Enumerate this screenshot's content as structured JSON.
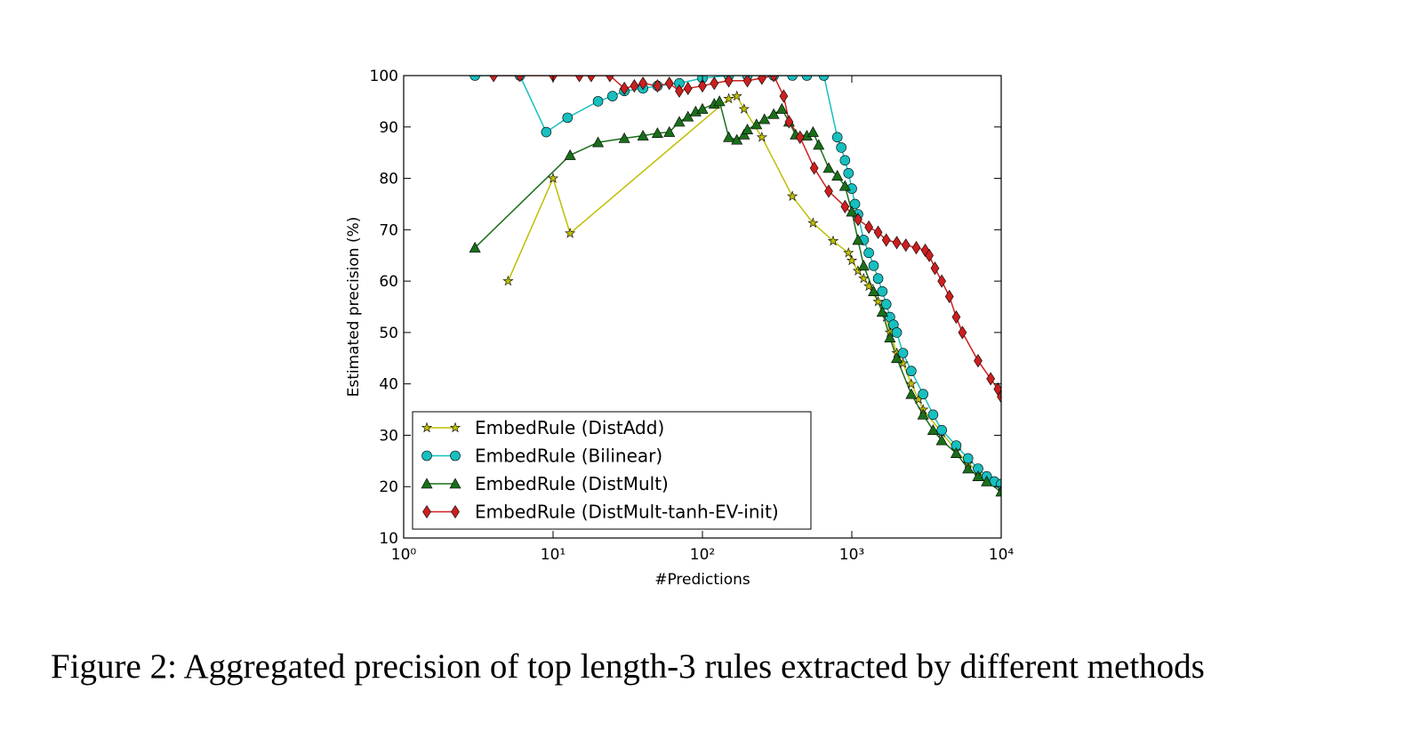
{
  "chart_data": {
    "type": "line",
    "xlabel": "#Predictions",
    "ylabel": "Estimated precision (%)",
    "caption": "Figure 2: Aggregated precision of top length-3 rules extracted by different methods",
    "xscale": "log",
    "xlim": [
      1,
      10000
    ],
    "xticks": [
      {
        "value": 1,
        "label": "10⁰"
      },
      {
        "value": 10,
        "label": "10¹"
      },
      {
        "value": 100,
        "label": "10²"
      },
      {
        "value": 1000,
        "label": "10³"
      },
      {
        "value": 10000,
        "label": "10⁴"
      }
    ],
    "ylim": [
      10,
      100
    ],
    "yticks": [
      10,
      20,
      30,
      40,
      50,
      60,
      70,
      80,
      90,
      100
    ],
    "legend": "lower left",
    "series": [
      {
        "name": "EmbedRule (DistAdd)",
        "color": "#bfbf00",
        "marker": "star",
        "x": [
          5,
          10,
          13,
          150,
          170,
          190,
          250,
          400,
          550,
          750,
          950,
          1000,
          1100,
          1200,
          1300,
          1500,
          1700,
          1800,
          2000,
          2200,
          2500,
          2800,
          3000,
          4000,
          5000,
          6000,
          7000,
          8000,
          10000
        ],
        "values": [
          60,
          80,
          69.3,
          95.5,
          96,
          93.5,
          88,
          76.5,
          71.3,
          67.8,
          65.5,
          64,
          62,
          60.5,
          59,
          56,
          53,
          50,
          46,
          44,
          40,
          37,
          35,
          30.5,
          27,
          24.5,
          23,
          21.5,
          20
        ]
      },
      {
        "name": "EmbedRule (Bilinear)",
        "color": "#17bfbf",
        "marker": "circle",
        "x": [
          3,
          6,
          9,
          12.5,
          20,
          25,
          30,
          40,
          50,
          70,
          100,
          150,
          200,
          300,
          400,
          500,
          650,
          800,
          850,
          900,
          950,
          1000,
          1050,
          1100,
          1200,
          1300,
          1400,
          1500,
          1600,
          1700,
          1800,
          1900,
          2000,
          2200,
          2500,
          3000,
          3500,
          4000,
          5000,
          6000,
          7000,
          8000,
          9000,
          10000
        ],
        "values": [
          100,
          100,
          89,
          91.8,
          95,
          96,
          97,
          97.5,
          98,
          98.5,
          99.5,
          100,
          100,
          100,
          100,
          100,
          100,
          88,
          86,
          83.5,
          81,
          78,
          75,
          73,
          68,
          65.5,
          63,
          60.5,
          58,
          55.5,
          53,
          51.5,
          50,
          46,
          42.5,
          38,
          34,
          31,
          28,
          25.5,
          23.5,
          22,
          21,
          20.5
        ]
      },
      {
        "name": "EmbedRule (DistMult)",
        "color": "#1a6e1a",
        "marker": "triangle",
        "x": [
          3,
          13,
          20,
          30,
          40,
          50,
          60,
          70,
          80,
          90,
          100,
          120,
          130,
          150,
          170,
          190,
          200,
          230,
          260,
          300,
          340,
          380,
          420,
          500,
          550,
          600,
          700,
          800,
          900,
          1000,
          1100,
          1200,
          1400,
          1600,
          1800,
          2000,
          2500,
          3000,
          3500,
          4000,
          5000,
          6000,
          7000,
          8000,
          10000
        ],
        "values": [
          66.5,
          84.5,
          87,
          87.8,
          88.3,
          88.8,
          89,
          91,
          92,
          93,
          93.5,
          94.5,
          95,
          88,
          87.5,
          88.5,
          89.5,
          90.5,
          91.5,
          92.5,
          93.5,
          91,
          88.5,
          88.3,
          89,
          86.5,
          82,
          80.5,
          78.5,
          73.5,
          68,
          63,
          58,
          54,
          49,
          45,
          38,
          34,
          31,
          29,
          26.5,
          23.5,
          22,
          21,
          19
        ]
      },
      {
        "name": "EmbedRule (DistMult-tanh-EV-init)",
        "color": "#cc1f1f",
        "marker": "diamond",
        "x": [
          4,
          6,
          10,
          15,
          18,
          24,
          30,
          35,
          40,
          50,
          60,
          70,
          80,
          100,
          120,
          150,
          200,
          250,
          300,
          350,
          380,
          450,
          560,
          700,
          900,
          1100,
          1300,
          1500,
          1700,
          2000,
          2300,
          2700,
          3100,
          3300,
          3600,
          4000,
          4500,
          5000,
          5500,
          7000,
          8500,
          9500,
          10000
        ],
        "values": [
          100,
          100,
          100,
          100,
          100,
          100,
          97.5,
          98,
          98.5,
          98,
          98.5,
          97,
          97.5,
          98,
          98.5,
          99,
          99,
          99.5,
          100,
          96,
          91,
          88,
          82,
          77.5,
          74.5,
          72,
          70.5,
          69.5,
          68,
          67.5,
          67,
          66.5,
          66,
          65,
          62.5,
          60,
          57,
          53,
          50,
          44.5,
          41,
          39,
          37.5
        ]
      }
    ]
  }
}
